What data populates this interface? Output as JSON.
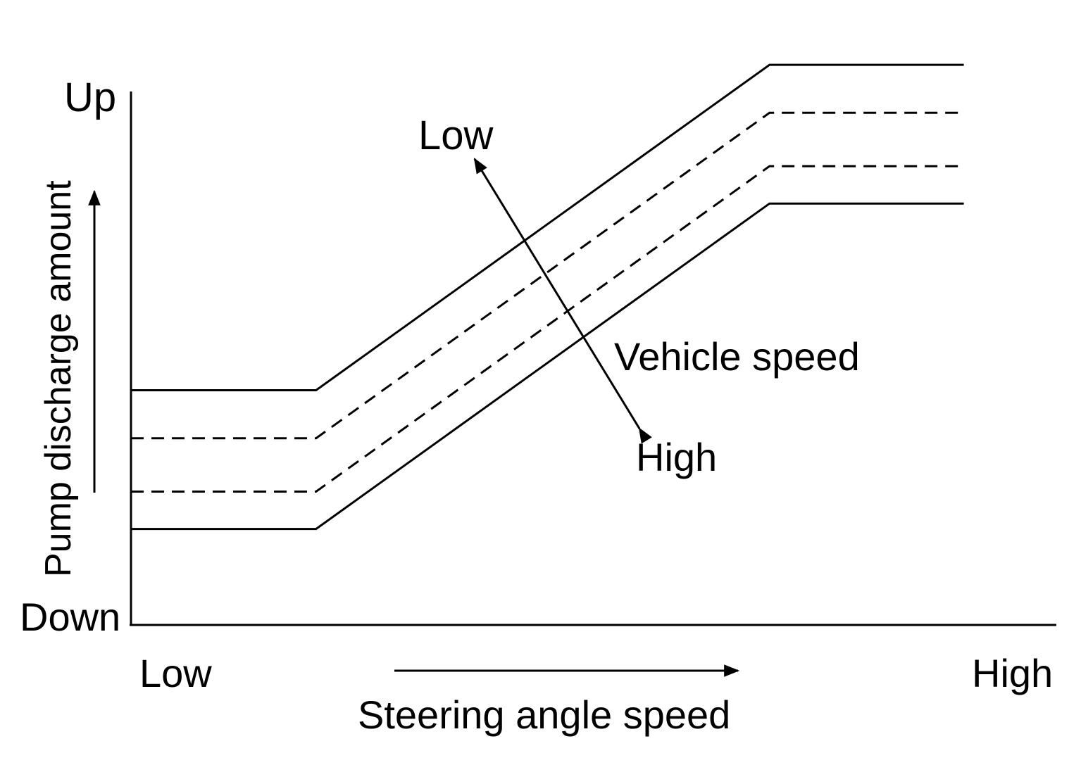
{
  "chart_data": {
    "type": "line",
    "xlabel": "Steering angle speed",
    "ylabel": "Pump discharge amount",
    "x_tick_labels": {
      "min": "Low",
      "max": "High"
    },
    "y_tick_labels": {
      "min": "Down",
      "max": "Up"
    },
    "annotation": {
      "label": "Vehicle speed",
      "start": "Low",
      "end": "High"
    },
    "xlim": [
      0,
      100
    ],
    "ylim": [
      0,
      100
    ],
    "grid": false,
    "legend": "none",
    "colors": {
      "line": "#000000",
      "background": "#ffffff"
    },
    "series": [
      {
        "style": "solid",
        "x": [
          0,
          20,
          69,
          90
        ],
        "y": [
          44,
          44,
          105,
          105
        ]
      },
      {
        "style": "dashed",
        "x": [
          0,
          20,
          69,
          90
        ],
        "y": [
          35,
          35,
          96,
          96
        ]
      },
      {
        "style": "dashed",
        "x": [
          0,
          20,
          69,
          90
        ],
        "y": [
          25,
          25,
          86,
          86
        ]
      },
      {
        "style": "solid",
        "x": [
          0,
          20,
          69,
          90
        ],
        "y": [
          18,
          18,
          79,
          79
        ]
      }
    ]
  }
}
